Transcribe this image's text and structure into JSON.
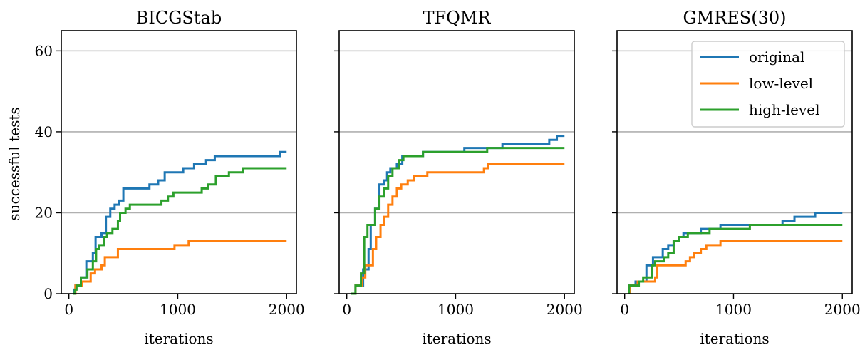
{
  "chart_data": [
    {
      "type": "line",
      "title": "BICGStab",
      "xlabel": "iterations",
      "ylabel": "successful tests",
      "xlim": [
        -70,
        2090
      ],
      "ylim": [
        0,
        65
      ],
      "xticks": [
        0,
        1000,
        2000
      ],
      "yticks": [
        0,
        20,
        40,
        60
      ],
      "grid_y": true,
      "series": [
        {
          "name": "original",
          "color": "#1f77b4",
          "step_points": [
            [
              50,
              0
            ],
            [
              50,
              1
            ],
            [
              60,
              2
            ],
            [
              110,
              4
            ],
            [
              160,
              8
            ],
            [
              190,
              8
            ],
            [
              220,
              10
            ],
            [
              245,
              14
            ],
            [
              300,
              15
            ],
            [
              340,
              19
            ],
            [
              380,
              21
            ],
            [
              420,
              22
            ],
            [
              460,
              23
            ],
            [
              500,
              26
            ],
            [
              740,
              27
            ],
            [
              820,
              28
            ],
            [
              880,
              30
            ],
            [
              1050,
              31
            ],
            [
              1150,
              32
            ],
            [
              1260,
              33
            ],
            [
              1300,
              33
            ],
            [
              1340,
              34
            ],
            [
              1940,
              35
            ],
            [
              2000,
              35
            ]
          ]
        },
        {
          "name": "low-level",
          "color": "#ff7f0e",
          "step_points": [
            [
              50,
              0
            ],
            [
              60,
              2
            ],
            [
              120,
              3
            ],
            [
              200,
              5
            ],
            [
              240,
              6
            ],
            [
              300,
              7
            ],
            [
              330,
              9
            ],
            [
              420,
              9
            ],
            [
              450,
              11
            ],
            [
              970,
              12
            ],
            [
              1100,
              13
            ],
            [
              2000,
              13
            ]
          ]
        },
        {
          "name": "high-level",
          "color": "#2ca02c",
          "step_points": [
            [
              40,
              0
            ],
            [
              55,
              1
            ],
            [
              70,
              2
            ],
            [
              110,
              4
            ],
            [
              170,
              6
            ],
            [
              220,
              8
            ],
            [
              250,
              11
            ],
            [
              280,
              12
            ],
            [
              320,
              14
            ],
            [
              350,
              15
            ],
            [
              400,
              16
            ],
            [
              450,
              18
            ],
            [
              470,
              20
            ],
            [
              520,
              21
            ],
            [
              560,
              22
            ],
            [
              850,
              23
            ],
            [
              910,
              24
            ],
            [
              960,
              25
            ],
            [
              1220,
              26
            ],
            [
              1280,
              27
            ],
            [
              1350,
              29
            ],
            [
              1470,
              30
            ],
            [
              1600,
              31
            ],
            [
              2000,
              31
            ]
          ]
        }
      ]
    },
    {
      "type": "line",
      "title": "TFQMR",
      "xlabel": "iterations",
      "ylabel": "",
      "xlim": [
        -70,
        2090
      ],
      "ylim": [
        0,
        65
      ],
      "xticks": [
        0,
        1000,
        2000
      ],
      "yticks": [
        0,
        20,
        40,
        60
      ],
      "grid_y": true,
      "series": [
        {
          "name": "original",
          "color": "#1f77b4",
          "step_points": [
            [
              50,
              0
            ],
            [
              80,
              2
            ],
            [
              150,
              6
            ],
            [
              180,
              6
            ],
            [
              200,
              11
            ],
            [
              220,
              17
            ],
            [
              260,
              21
            ],
            [
              300,
              27
            ],
            [
              340,
              28
            ],
            [
              370,
              30
            ],
            [
              400,
              31
            ],
            [
              460,
              32
            ],
            [
              510,
              34
            ],
            [
              700,
              35
            ],
            [
              1080,
              36
            ],
            [
              1430,
              37
            ],
            [
              1860,
              38
            ],
            [
              1930,
              39
            ],
            [
              2000,
              39
            ]
          ]
        },
        {
          "name": "low-level",
          "color": "#ff7f0e",
          "step_points": [
            [
              40,
              0
            ],
            [
              80,
              2
            ],
            [
              140,
              4
            ],
            [
              170,
              7
            ],
            [
              240,
              11
            ],
            [
              270,
              14
            ],
            [
              310,
              17
            ],
            [
              340,
              19
            ],
            [
              380,
              22
            ],
            [
              420,
              24
            ],
            [
              460,
              26
            ],
            [
              500,
              27
            ],
            [
              560,
              28
            ],
            [
              620,
              29
            ],
            [
              740,
              30
            ],
            [
              1260,
              31
            ],
            [
              1300,
              32
            ],
            [
              2000,
              32
            ]
          ]
        },
        {
          "name": "high-level",
          "color": "#2ca02c",
          "step_points": [
            [
              40,
              0
            ],
            [
              80,
              2
            ],
            [
              130,
              5
            ],
            [
              160,
              14
            ],
            [
              190,
              17
            ],
            [
              230,
              17
            ],
            [
              260,
              21
            ],
            [
              300,
              24
            ],
            [
              340,
              26
            ],
            [
              380,
              29
            ],
            [
              420,
              31
            ],
            [
              480,
              33
            ],
            [
              520,
              34
            ],
            [
              700,
              35
            ],
            [
              1290,
              36
            ],
            [
              2000,
              36
            ]
          ]
        }
      ]
    },
    {
      "type": "line",
      "title": "GMRES(30)",
      "xlabel": "iterations",
      "ylabel": "",
      "xlim": [
        -70,
        2090
      ],
      "ylim": [
        0,
        65
      ],
      "xticks": [
        0,
        1000,
        2000
      ],
      "yticks": [
        0,
        20,
        40,
        60
      ],
      "grid_y": true,
      "legend_location": "upper right",
      "series": [
        {
          "name": "original",
          "color": "#1f77b4",
          "step_points": [
            [
              40,
              0
            ],
            [
              40,
              2
            ],
            [
              100,
              3
            ],
            [
              200,
              7
            ],
            [
              260,
              9
            ],
            [
              320,
              9
            ],
            [
              350,
              11
            ],
            [
              400,
              12
            ],
            [
              450,
              13
            ],
            [
              500,
              14
            ],
            [
              540,
              15
            ],
            [
              700,
              16
            ],
            [
              880,
              17
            ],
            [
              1450,
              18
            ],
            [
              1560,
              19
            ],
            [
              1750,
              20
            ],
            [
              2000,
              20
            ]
          ]
        },
        {
          "name": "low-level",
          "color": "#ff7f0e",
          "step_points": [
            [
              50,
              0
            ],
            [
              50,
              2
            ],
            [
              120,
              3
            ],
            [
              280,
              4
            ],
            [
              300,
              7
            ],
            [
              560,
              8
            ],
            [
              600,
              9
            ],
            [
              640,
              10
            ],
            [
              700,
              11
            ],
            [
              750,
              12
            ],
            [
              880,
              13
            ],
            [
              2000,
              13
            ]
          ]
        },
        {
          "name": "high-level",
          "color": "#2ca02c",
          "step_points": [
            [
              40,
              0
            ],
            [
              40,
              2
            ],
            [
              130,
              3
            ],
            [
              170,
              4
            ],
            [
              250,
              7
            ],
            [
              280,
              8
            ],
            [
              360,
              9
            ],
            [
              400,
              10
            ],
            [
              450,
              13
            ],
            [
              500,
              14
            ],
            [
              580,
              15
            ],
            [
              780,
              16
            ],
            [
              1150,
              17
            ],
            [
              2000,
              17
            ]
          ]
        }
      ]
    }
  ]
}
